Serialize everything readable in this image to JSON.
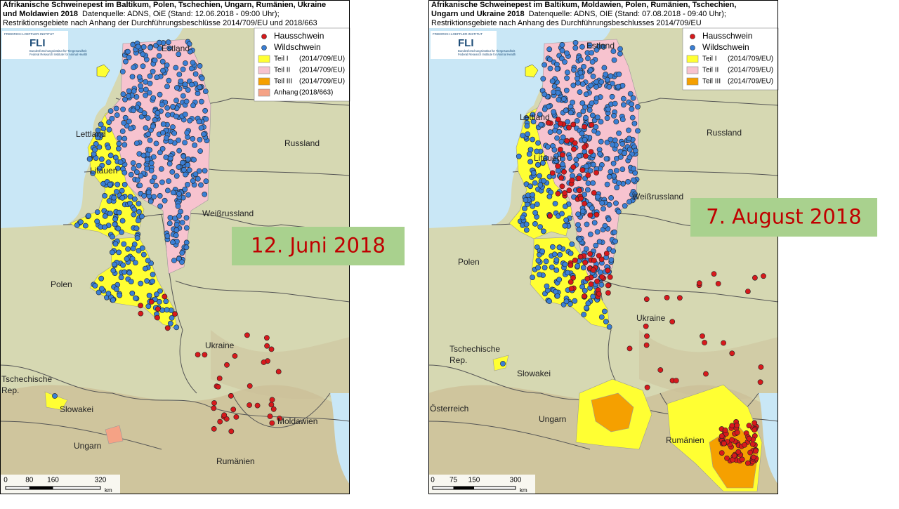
{
  "maps": [
    {
      "title_lines": [
        "Afrikanische Schweinepest im Baltikum, Polen, Tschechien, Ungarn, Rumänien, Ukraine",
        "und Moldawien 2018"
      ],
      "source": "Datenquelle: ADNS, OiE (Stand: 12.06.2018 - 09:00 Uhr);",
      "subtitle": "Restriktionsgebiete nach Anhang der Durchführungsbeschlüsse 2014/709/EU und 2018/663",
      "logo": {
        "org": "FRIEDRICH-LOEFFLER-INSTITUT",
        "name": "FLI",
        "line1": "Bundesforschungsinstitut für Tiergesundheit",
        "line2": "Federal Research Institute for Animal Health"
      },
      "legend": [
        {
          "name": "Hausschwein",
          "color": "#d7191c",
          "kind": "dot"
        },
        {
          "name": "Wildschwein",
          "color": "#3a7fd5",
          "kind": "dot"
        },
        {
          "name": "Teil I",
          "ref": "(2014/709/EU)",
          "color": "#ffff33",
          "kind": "area"
        },
        {
          "name": "Teil II",
          "ref": "(2014/709/EU)",
          "color": "#f7c3cf",
          "kind": "area"
        },
        {
          "name": "Teil III",
          "ref": "(2014/709/EU)",
          "color": "#f5a000",
          "kind": "area"
        },
        {
          "name": "Anhang",
          "ref": "(2018/663)",
          "color": "#f5a285",
          "kind": "area"
        }
      ],
      "places": [
        {
          "lines": [
            "Estland"
          ]
        },
        {
          "lines": [
            "Lettland"
          ]
        },
        {
          "lines": [
            "Litauen"
          ]
        },
        {
          "lines": [
            "Russland"
          ]
        },
        {
          "lines": [
            "Weißrussland"
          ]
        },
        {
          "lines": [
            "Polen"
          ]
        },
        {
          "lines": [
            "Ukraine"
          ]
        },
        {
          "lines": [
            "Tschechische",
            "Rep."
          ]
        },
        {
          "lines": [
            "Slowakei"
          ]
        },
        {
          "lines": [
            "Ungarn"
          ]
        },
        {
          "lines": [
            "Moldawien"
          ]
        },
        {
          "lines": [
            "Rumänien"
          ]
        }
      ],
      "scale": {
        "ticks": [
          0,
          80,
          160,
          320
        ],
        "unit": "km"
      },
      "date": "12. Juni 2018"
    },
    {
      "title_lines": [
        "Afrikanische Schweinepest im Baltikum, Moldawien, Polen, Rumänien, Tschechien,",
        "Ungarn und Ukraine 2018"
      ],
      "source": "Datenquelle: ADNS, OIE (Stand: 07.08.2018 - 09:40 Uhr);",
      "subtitle": "Restriktionsgebiete nach Anhang des Durchführungsbeschlusses 2014/709/EU",
      "logo": {
        "org": "FRIEDRICH-LOEFFLER-INSTITUT",
        "name": "FLI",
        "line1": "Bundesforschungsinstitut für Tiergesundheit",
        "line2": "Federal Research Institute for Animal Health"
      },
      "legend": [
        {
          "name": "Hausschwein",
          "color": "#d7191c",
          "kind": "dot"
        },
        {
          "name": "Wildschwein",
          "color": "#3a7fd5",
          "kind": "dot"
        },
        {
          "name": "Teil I",
          "ref": "(2014/709/EU)",
          "color": "#ffff33",
          "kind": "area"
        },
        {
          "name": "Teil II",
          "ref": "(2014/709/EU)",
          "color": "#f7c3cf",
          "kind": "area"
        },
        {
          "name": "Teil III",
          "ref": "(2014/709/EU)",
          "color": "#f5a000",
          "kind": "area"
        }
      ],
      "places": [
        {
          "lines": [
            "Estland"
          ]
        },
        {
          "lines": [
            "Lettland"
          ]
        },
        {
          "lines": [
            "Litauen"
          ]
        },
        {
          "lines": [
            "Russland"
          ]
        },
        {
          "lines": [
            "Weißrussland"
          ]
        },
        {
          "lines": [
            "Polen"
          ]
        },
        {
          "lines": [
            "Ukraine"
          ]
        },
        {
          "lines": [
            "Tschechische",
            "Rep."
          ]
        },
        {
          "lines": [
            "Slowakei"
          ]
        },
        {
          "lines": [
            "Österreich"
          ]
        },
        {
          "lines": [
            "Ungarn"
          ]
        },
        {
          "lines": [
            "Rumänien"
          ]
        }
      ],
      "scale": {
        "ticks": [
          0,
          75,
          150,
          300
        ],
        "unit": "km"
      },
      "date": "7. August 2018"
    }
  ]
}
